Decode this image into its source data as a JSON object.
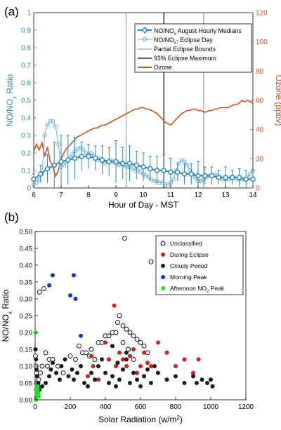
{
  "panel_a_label": "(a)",
  "panel_b_label": "(b)",
  "colors": {
    "no_ratio": "#2b86b8",
    "ozone": "#c9531f",
    "unclassified": "#000000",
    "eclipse": "#cc1f1f",
    "cloudy": "#1a1a1a",
    "morning": "#1133cc",
    "afternoon": "#22dd22"
  },
  "chart_data": [
    {
      "type": "line",
      "xlabel": "Hour of Day - MST",
      "ylabel_left": "NO/NOx Ratio",
      "ylabel_right": "Ozone (ppbv)",
      "xlim": [
        6,
        14
      ],
      "ylim_left": [
        0,
        1
      ],
      "ylim_right": [
        0,
        120
      ],
      "x_ticks": [
        "6",
        "7",
        "8",
        "9",
        "10",
        "11",
        "12",
        "13",
        "14"
      ],
      "y_left_ticks": [
        "0",
        "0.1",
        "0.2",
        "0.3",
        "0.4",
        "0.5",
        "0.6",
        "0.7",
        "0.8",
        "0.9",
        "1"
      ],
      "y_right_ticks": [
        "0",
        "20",
        "40",
        "60",
        "80",
        "100",
        "120"
      ],
      "legend": [
        "NO/NOx August Hourly Medians",
        "NO/NOx- Eclipse Day",
        "Partial Eclipse Bounds",
        "93% Eclipse Maximum",
        "Ozone"
      ],
      "vertical_lines": {
        "partial_eclipse_bounds": [
          9.37,
          12.2
        ],
        "eclipse_maximum": 10.75
      },
      "series": [
        {
          "name": "NO/NOx August Hourly Medians",
          "x": [
            6.0,
            6.25,
            6.5,
            6.75,
            7.0,
            7.25,
            7.5,
            7.75,
            8.0,
            8.25,
            8.5,
            8.75,
            9.0,
            9.25,
            9.5,
            9.75,
            10.0,
            10.25,
            10.5,
            10.75,
            11.0,
            11.25,
            11.5,
            11.75,
            12.0,
            12.25,
            12.5,
            12.75,
            13.0,
            13.25,
            13.5,
            13.75,
            14.0
          ],
          "y": [
            0.05,
            0.08,
            0.11,
            0.13,
            0.15,
            0.16,
            0.17,
            0.18,
            0.18,
            0.17,
            0.16,
            0.15,
            0.15,
            0.14,
            0.14,
            0.13,
            0.12,
            0.11,
            0.1,
            0.1,
            0.09,
            0.09,
            0.08,
            0.08,
            0.07,
            0.07,
            0.07,
            0.06,
            0.06,
            0.06,
            0.06,
            0.05,
            0.05
          ],
          "err": [
            0.03,
            0.05,
            0.08,
            0.13,
            0.15,
            0.14,
            0.12,
            0.08,
            0.07,
            0.07,
            0.08,
            0.08,
            0.12,
            0.09,
            0.1,
            0.08,
            0.08,
            0.07,
            0.08,
            0.09,
            0.08,
            0.05,
            0.06,
            0.06,
            0.08,
            0.05,
            0.05,
            0.04,
            0.06,
            0.04,
            0.05,
            0.05,
            0.05
          ]
        },
        {
          "name": "NO/NOx- Eclipse Day",
          "x": [
            6.0,
            6.1,
            6.2,
            6.3,
            6.4,
            6.5,
            6.6,
            6.7,
            6.8,
            6.9,
            7.0,
            7.1,
            7.2,
            7.3,
            7.4,
            7.5,
            7.6,
            7.7,
            7.8,
            7.9,
            8.0,
            8.1,
            8.2,
            8.3,
            8.4,
            8.5,
            8.6,
            8.7,
            8.8,
            8.9,
            9.0,
            9.1,
            9.2,
            9.3,
            9.4,
            9.5,
            9.6,
            9.7,
            9.8,
            9.9,
            10.0,
            10.1,
            10.2,
            10.3,
            10.4,
            10.5,
            10.6,
            10.7,
            10.8,
            10.9,
            11.0,
            11.1,
            11.2,
            11.3,
            11.4,
            11.5,
            11.6,
            11.7,
            11.8,
            11.9,
            12.0,
            12.1,
            12.2,
            12.3,
            12.4,
            12.5,
            12.6,
            12.7,
            12.8,
            12.9,
            13.0,
            13.1,
            13.2,
            13.3,
            13.4,
            13.5,
            13.6,
            13.7,
            13.8,
            13.9,
            14.0
          ],
          "y": [
            0.02,
            0.03,
            0.05,
            0.08,
            0.3,
            0.36,
            0.38,
            0.38,
            0.35,
            0.25,
            0.12,
            0.13,
            0.15,
            0.17,
            0.19,
            0.21,
            0.22,
            0.23,
            0.22,
            0.2,
            0.19,
            0.2,
            0.18,
            0.16,
            0.17,
            0.15,
            0.14,
            0.15,
            0.16,
            0.15,
            0.14,
            0.13,
            0.14,
            0.13,
            0.12,
            0.12,
            0.11,
            0.1,
            0.1,
            0.09,
            0.08,
            0.07,
            0.06,
            0.05,
            0.04,
            0.04,
            0.03,
            0.03,
            0.02,
            0.02,
            0.03,
            0.05,
            0.1,
            0.14,
            0.16,
            0.15,
            0.13,
            0.1,
            0.08,
            0.06,
            0.04,
            0.04,
            0.05,
            0.06,
            0.07,
            0.07,
            0.08,
            0.07,
            0.06,
            0.05,
            0.05,
            0.05,
            0.06,
            0.06,
            0.05,
            0.05,
            0.05,
            0.05,
            0.06,
            0.08,
            0.1
          ]
        },
        {
          "name": "Ozone",
          "x": [
            6.0,
            6.1,
            6.2,
            6.3,
            6.4,
            6.5,
            6.6,
            6.7,
            6.8,
            6.9,
            7.0,
            7.1,
            7.2,
            7.3,
            7.4,
            7.5,
            7.6,
            7.7,
            7.8,
            7.9,
            8.0,
            8.1,
            8.2,
            8.3,
            8.4,
            8.5,
            8.6,
            8.7,
            8.8,
            8.9,
            9.0,
            9.1,
            9.2,
            9.3,
            9.4,
            9.5,
            9.6,
            9.7,
            9.8,
            9.9,
            10.0,
            10.1,
            10.2,
            10.3,
            10.4,
            10.5,
            10.6,
            10.7,
            10.8,
            10.9,
            11.0,
            11.1,
            11.2,
            11.3,
            11.4,
            11.5,
            11.6,
            11.7,
            11.8,
            11.9,
            12.0,
            12.1,
            12.2,
            12.3,
            12.4,
            12.5,
            12.6,
            12.7,
            12.8,
            12.9,
            13.0,
            13.1,
            13.2,
            13.3,
            13.4,
            13.5,
            13.6,
            13.7,
            13.8,
            13.9,
            14.0
          ],
          "y": [
            25,
            30,
            26,
            31,
            22,
            28,
            18,
            15,
            8,
            12,
            20,
            24,
            27,
            29,
            31,
            33,
            35,
            36,
            37,
            38,
            39,
            40,
            41,
            41,
            42,
            43,
            43,
            44,
            45,
            46,
            47,
            48,
            49,
            50,
            51,
            52,
            53,
            54,
            54,
            55,
            55,
            54,
            54,
            53,
            52,
            51,
            49,
            47,
            45,
            44,
            43,
            45,
            47,
            49,
            51,
            52,
            53,
            53,
            54,
            54,
            53,
            53,
            52,
            52,
            53,
            53,
            54,
            54,
            55,
            55,
            55,
            55,
            56,
            57,
            57,
            58,
            60,
            59,
            60,
            59,
            58
          ]
        }
      ]
    },
    {
      "type": "scatter",
      "xlabel": "Solar Radiation (w/m2)",
      "ylabel": "NO/NOx Ratio",
      "xlim": [
        0,
        1200
      ],
      "ylim": [
        0,
        0.5
      ],
      "x_ticks": [
        "0",
        "200",
        "400",
        "600",
        "800",
        "1000",
        "1200"
      ],
      "y_ticks": [
        "0.00",
        "0.05",
        "0.10",
        "0.15",
        "0.20",
        "0.25",
        "0.30",
        "0.35",
        "0.40",
        "0.45",
        "0.50"
      ],
      "legend_position": "top-right",
      "series": [
        {
          "name": "Unclassified",
          "points": [
            [
              2,
              0.13
            ],
            [
              5,
              0.1
            ],
            [
              8,
              0.08
            ],
            [
              10,
              0.05
            ],
            [
              15,
              0.04
            ],
            [
              20,
              0.06
            ],
            [
              25,
              0.32
            ],
            [
              30,
              0.08
            ],
            [
              40,
              0.1
            ],
            [
              50,
              0.33
            ],
            [
              60,
              0.14
            ],
            [
              70,
              0.1
            ],
            [
              80,
              0.12
            ],
            [
              100,
              0.12
            ],
            [
              130,
              0.1
            ],
            [
              160,
              0.08
            ],
            [
              200,
              0.13
            ],
            [
              230,
              0.12
            ],
            [
              250,
              0.16
            ],
            [
              270,
              0.14
            ],
            [
              290,
              0.14
            ],
            [
              310,
              0.13
            ],
            [
              320,
              0.15
            ],
            [
              340,
              0.12
            ],
            [
              360,
              0.17
            ],
            [
              380,
              0.17
            ],
            [
              400,
              0.19
            ],
            [
              420,
              0.19
            ],
            [
              440,
              0.2
            ],
            [
              460,
              0.2
            ],
            [
              470,
              0.23
            ],
            [
              480,
              0.25
            ],
            [
              500,
              0.22
            ],
            [
              510,
              0.48
            ],
            [
              520,
              0.21
            ],
            [
              540,
              0.2
            ],
            [
              560,
              0.19
            ],
            [
              580,
              0.18
            ],
            [
              600,
              0.17
            ],
            [
              620,
              0.16
            ],
            [
              640,
              0.14
            ],
            [
              660,
              0.41
            ],
            [
              500,
              0.17
            ],
            [
              530,
              0.15
            ],
            [
              560,
              0.12
            ]
          ]
        },
        {
          "name": "During Eclipse",
          "points": [
            [
              300,
              0.07
            ],
            [
              320,
              0.13
            ],
            [
              330,
              0.1
            ],
            [
              360,
              0.06
            ],
            [
              400,
              0.17
            ],
            [
              420,
              0.12
            ],
            [
              450,
              0.28
            ],
            [
              460,
              0.1
            ],
            [
              480,
              0.14
            ],
            [
              500,
              0.12
            ],
            [
              520,
              0.1
            ],
            [
              540,
              0.13
            ],
            [
              560,
              0.15
            ],
            [
              580,
              0.08
            ],
            [
              600,
              0.1
            ],
            [
              620,
              0.14
            ],
            [
              640,
              0.11
            ],
            [
              660,
              0.1
            ],
            [
              700,
              0.17
            ],
            [
              750,
              0.14
            ],
            [
              800,
              0.1
            ],
            [
              850,
              0.12
            ],
            [
              900,
              0.08
            ],
            [
              930,
              0.12
            ]
          ]
        },
        {
          "name": "Cloudy Period",
          "points": [
            [
              2,
              0.15
            ],
            [
              5,
              0.12
            ],
            [
              8,
              0.09
            ],
            [
              12,
              0.07
            ],
            [
              18,
              0.05
            ],
            [
              25,
              0.03
            ],
            [
              40,
              0.04
            ],
            [
              60,
              0.05
            ],
            [
              80,
              0.07
            ],
            [
              90,
              0.09
            ],
            [
              100,
              0.11
            ],
            [
              120,
              0.08
            ],
            [
              140,
              0.06
            ],
            [
              150,
              0.1
            ],
            [
              170,
              0.12
            ],
            [
              190,
              0.07
            ],
            [
              210,
              0.09
            ],
            [
              220,
              0.06
            ],
            [
              240,
              0.08
            ],
            [
              260,
              0.1
            ],
            [
              280,
              0.05
            ],
            [
              300,
              0.04
            ],
            [
              320,
              0.08
            ],
            [
              340,
              0.06
            ],
            [
              360,
              0.1
            ],
            [
              380,
              0.12
            ],
            [
              400,
              0.08
            ],
            [
              420,
              0.05
            ],
            [
              440,
              0.07
            ],
            [
              460,
              0.04
            ],
            [
              480,
              0.06
            ],
            [
              500,
              0.09
            ],
            [
              520,
              0.12
            ],
            [
              540,
              0.05
            ],
            [
              560,
              0.08
            ],
            [
              580,
              0.06
            ],
            [
              600,
              0.04
            ],
            [
              620,
              0.07
            ],
            [
              640,
              0.09
            ],
            [
              660,
              0.05
            ],
            [
              680,
              0.1
            ],
            [
              700,
              0.08
            ],
            [
              750,
              0.06
            ],
            [
              800,
              0.07
            ],
            [
              850,
              0.05
            ],
            [
              900,
              0.07
            ],
            [
              920,
              0.05
            ],
            [
              950,
              0.06
            ],
            [
              980,
              0.05
            ],
            [
              1000,
              0.06
            ],
            [
              1010,
              0.04
            ],
            [
              470,
              0.11
            ],
            [
              440,
              0.16
            ],
            [
              520,
              0.14
            ]
          ]
        },
        {
          "name": "Morning Peak",
          "points": [
            [
              80,
              0.34
            ],
            [
              100,
              0.37
            ],
            [
              200,
              0.31
            ],
            [
              220,
              0.37
            ],
            [
              230,
              0.3
            ],
            [
              260,
              0.19
            ]
          ]
        },
        {
          "name": "Afternoon NO2 Peak",
          "points": [
            [
              2,
              0.2
            ],
            [
              4,
              0.03
            ],
            [
              6,
              0.01
            ],
            [
              8,
              0.02
            ],
            [
              10,
              0.04
            ],
            [
              12,
              0.01
            ],
            [
              15,
              0.03
            ],
            [
              5,
              0.0
            ],
            [
              18,
              0.02
            ],
            [
              20,
              0.01
            ]
          ]
        }
      ]
    }
  ]
}
